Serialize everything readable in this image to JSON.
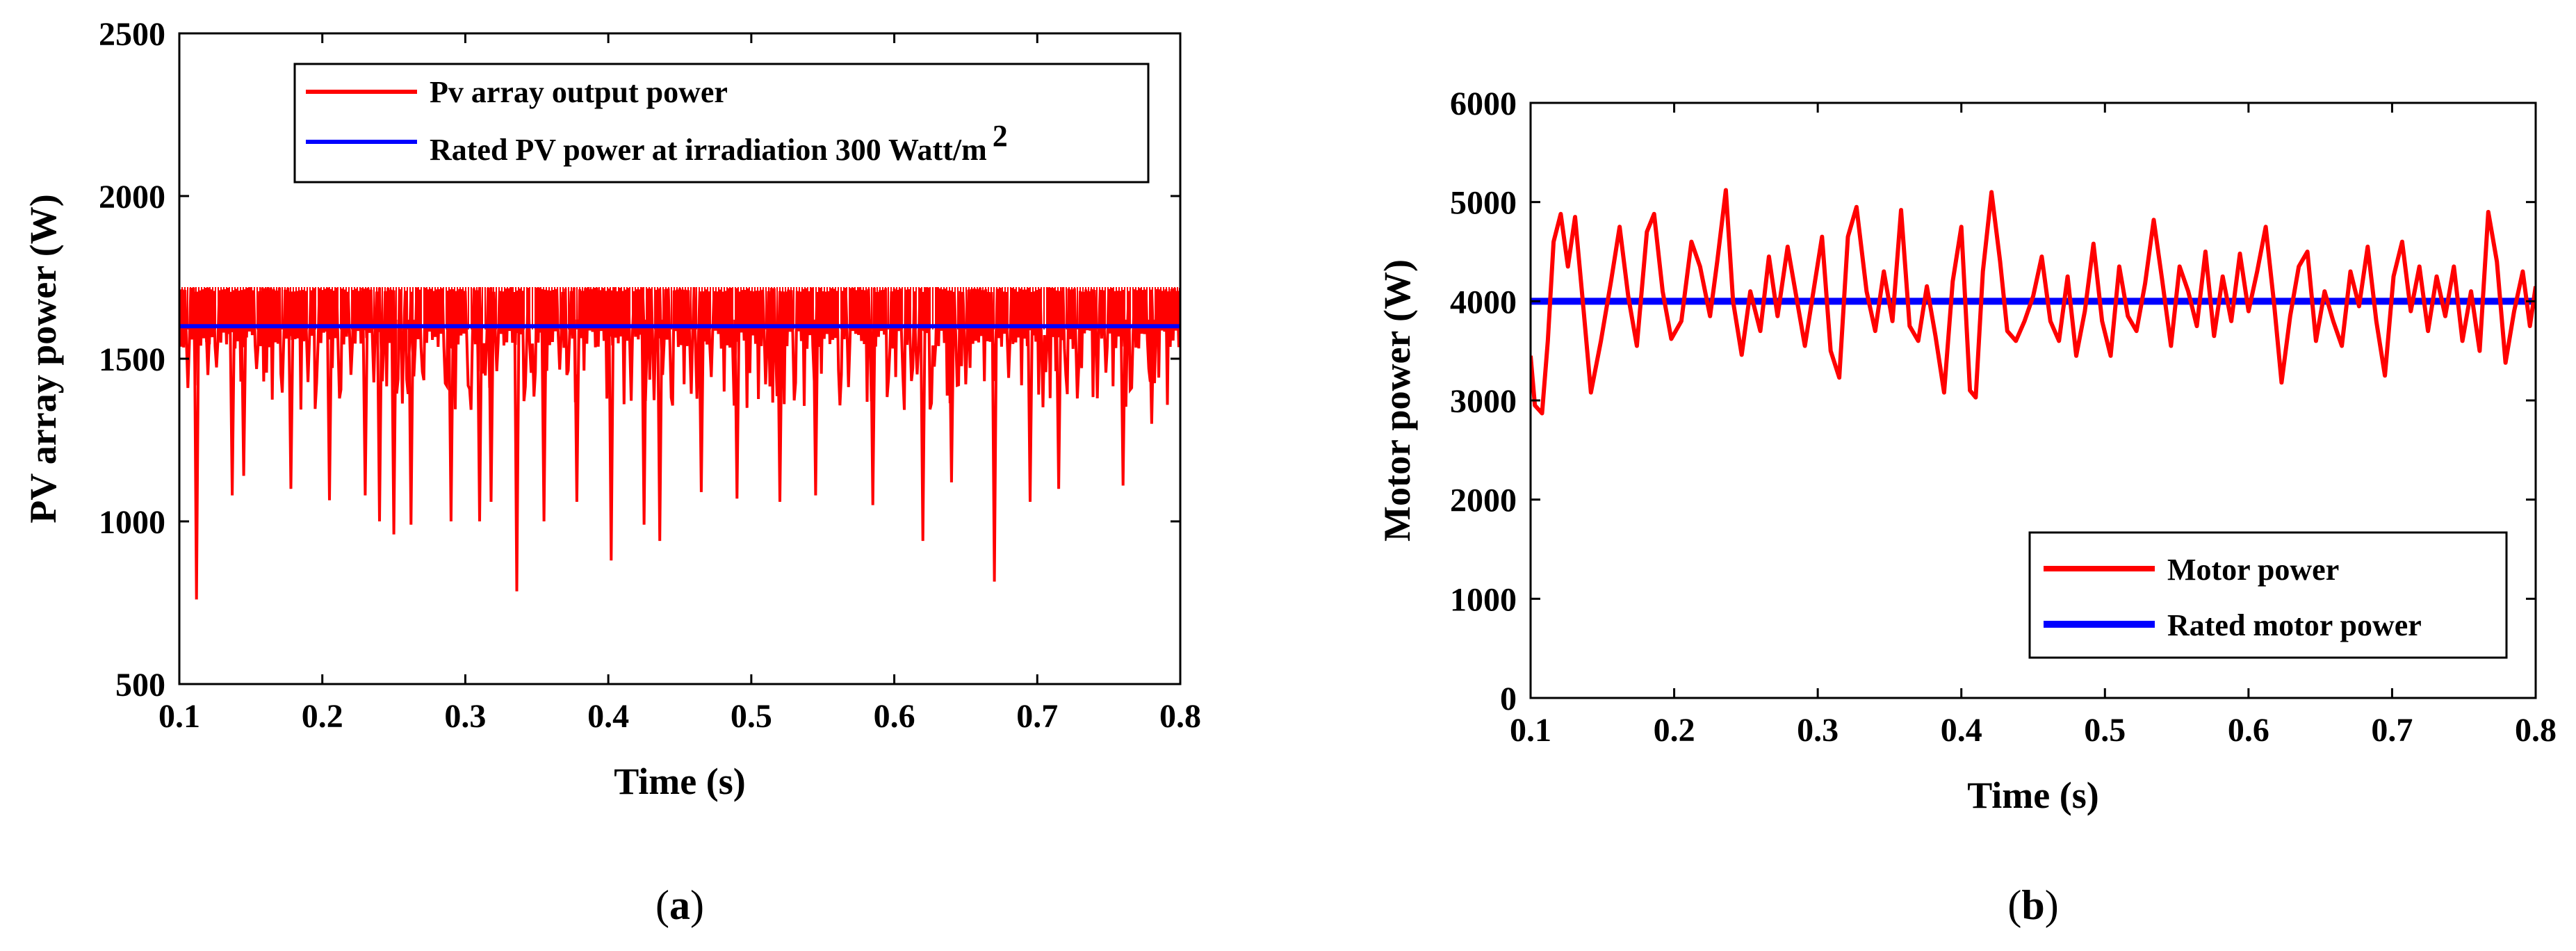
{
  "chart_data": [
    {
      "type": "line",
      "panel": "(a)",
      "caption_letter": "a",
      "xlabel": "Time (s)",
      "ylabel": "PV array power (W)",
      "xlim": [
        0.1,
        0.8
      ],
      "ylim": [
        500,
        2500
      ],
      "xticks": [
        0.1,
        0.2,
        0.3,
        0.4,
        0.5,
        0.6,
        0.7,
        0.8
      ],
      "yticks": [
        500,
        1000,
        1500,
        2000,
        2500
      ],
      "xtick_labels": [
        "0.1",
        "0.2",
        "0.3",
        "0.4",
        "0.5",
        "0.6",
        "0.7",
        "0.8"
      ],
      "ytick_labels": [
        "500",
        "1000",
        "1500",
        "2000",
        "2500"
      ],
      "legend_position": "top-right",
      "series": [
        {
          "name": "Pv array output power",
          "color": "#ff0000",
          "kind": "noisy",
          "base_range": [
            1560,
            1720
          ],
          "dips": [
            [
              0.112,
              760
            ],
            [
              0.12,
              1450
            ],
            [
              0.137,
              1080
            ],
            [
              0.145,
              1140
            ],
            [
              0.178,
              1100
            ],
            [
              0.205,
              1065
            ],
            [
              0.23,
              1080
            ],
            [
              0.24,
              1000
            ],
            [
              0.25,
              960
            ],
            [
              0.262,
              990
            ],
            [
              0.29,
              1000
            ],
            [
              0.31,
              1000
            ],
            [
              0.318,
              1060
            ],
            [
              0.336,
              785
            ],
            [
              0.355,
              1000
            ],
            [
              0.378,
              1060
            ],
            [
              0.402,
              880
            ],
            [
              0.425,
              990
            ],
            [
              0.436,
              940
            ],
            [
              0.465,
              1090
            ],
            [
              0.49,
              1070
            ],
            [
              0.52,
              1060
            ],
            [
              0.545,
              1080
            ],
            [
              0.585,
              1050
            ],
            [
              0.62,
              940
            ],
            [
              0.64,
              1120
            ],
            [
              0.67,
              815
            ],
            [
              0.695,
              1060
            ],
            [
              0.715,
              1100
            ],
            [
              0.76,
              1110
            ],
            [
              0.78,
              1300
            ]
          ]
        },
        {
          "name": "Rated PV power at irradiation 300 Watt/m",
          "superscript": "2",
          "color": "#0000ff",
          "kind": "constant",
          "value": 1600
        }
      ]
    },
    {
      "type": "line",
      "panel": "(b)",
      "caption_letter": "b",
      "xlabel": "Time (s)",
      "ylabel": "Motor power (W)",
      "xlim": [
        0.1,
        0.8
      ],
      "ylim": [
        0,
        6000
      ],
      "xticks": [
        0.1,
        0.2,
        0.3,
        0.4,
        0.5,
        0.6,
        0.7,
        0.8
      ],
      "yticks": [
        0,
        1000,
        2000,
        3000,
        4000,
        5000,
        6000
      ],
      "xtick_labels": [
        "0.1",
        "0.2",
        "0.3",
        "0.4",
        "0.5",
        "0.6",
        "0.7",
        "0.8"
      ],
      "ytick_labels": [
        "0",
        "1000",
        "2000",
        "3000",
        "4000",
        "5000",
        "6000"
      ],
      "legend_position": "bottom-right",
      "series": [
        {
          "name": "Motor power",
          "color": "#ff0000",
          "kind": "curve",
          "points": [
            [
              0.1,
              3450
            ],
            [
              0.103,
              2950
            ],
            [
              0.108,
              2870
            ],
            [
              0.112,
              3600
            ],
            [
              0.116,
              4600
            ],
            [
              0.121,
              4880
            ],
            [
              0.126,
              4350
            ],
            [
              0.131,
              4850
            ],
            [
              0.137,
              3900
            ],
            [
              0.142,
              3080
            ],
            [
              0.149,
              3600
            ],
            [
              0.156,
              4200
            ],
            [
              0.162,
              4750
            ],
            [
              0.168,
              4050
            ],
            [
              0.174,
              3550
            ],
            [
              0.181,
              4700
            ],
            [
              0.186,
              4880
            ],
            [
              0.192,
              4100
            ],
            [
              0.198,
              3620
            ],
            [
              0.205,
              3800
            ],
            [
              0.212,
              4600
            ],
            [
              0.218,
              4350
            ],
            [
              0.225,
              3850
            ],
            [
              0.23,
              4400
            ],
            [
              0.236,
              5120
            ],
            [
              0.241,
              4000
            ],
            [
              0.247,
              3460
            ],
            [
              0.253,
              4100
            ],
            [
              0.26,
              3700
            ],
            [
              0.266,
              4450
            ],
            [
              0.272,
              3850
            ],
            [
              0.279,
              4550
            ],
            [
              0.285,
              4050
            ],
            [
              0.291,
              3550
            ],
            [
              0.297,
              4100
            ],
            [
              0.303,
              4650
            ],
            [
              0.309,
              3500
            ],
            [
              0.315,
              3230
            ],
            [
              0.321,
              4650
            ],
            [
              0.327,
              4950
            ],
            [
              0.334,
              4100
            ],
            [
              0.34,
              3700
            ],
            [
              0.346,
              4300
            ],
            [
              0.352,
              3800
            ],
            [
              0.358,
              4920
            ],
            [
              0.364,
              3750
            ],
            [
              0.37,
              3600
            ],
            [
              0.376,
              4150
            ],
            [
              0.382,
              3650
            ],
            [
              0.388,
              3080
            ],
            [
              0.394,
              4200
            ],
            [
              0.4,
              4750
            ],
            [
              0.406,
              3100
            ],
            [
              0.41,
              3030
            ],
            [
              0.415,
              4300
            ],
            [
              0.421,
              5100
            ],
            [
              0.427,
              4400
            ],
            [
              0.432,
              3700
            ],
            [
              0.438,
              3600
            ],
            [
              0.444,
              3800
            ],
            [
              0.45,
              4050
            ],
            [
              0.456,
              4450
            ],
            [
              0.462,
              3800
            ],
            [
              0.468,
              3600
            ],
            [
              0.474,
              4250
            ],
            [
              0.48,
              3450
            ],
            [
              0.486,
              3900
            ],
            [
              0.492,
              4580
            ],
            [
              0.498,
              3800
            ],
            [
              0.504,
              3450
            ],
            [
              0.51,
              4350
            ],
            [
              0.516,
              3850
            ],
            [
              0.522,
              3700
            ],
            [
              0.528,
              4180
            ],
            [
              0.534,
              4820
            ],
            [
              0.54,
              4200
            ],
            [
              0.546,
              3550
            ],
            [
              0.552,
              4350
            ],
            [
              0.558,
              4100
            ],
            [
              0.564,
              3750
            ],
            [
              0.57,
              4500
            ],
            [
              0.576,
              3650
            ],
            [
              0.582,
              4250
            ],
            [
              0.588,
              3800
            ],
            [
              0.594,
              4480
            ],
            [
              0.6,
              3900
            ],
            [
              0.606,
              4300
            ],
            [
              0.612,
              4750
            ],
            [
              0.618,
              3950
            ],
            [
              0.623,
              3180
            ],
            [
              0.629,
              3850
            ],
            [
              0.635,
              4350
            ],
            [
              0.641,
              4500
            ],
            [
              0.647,
              3600
            ],
            [
              0.653,
              4100
            ],
            [
              0.659,
              3800
            ],
            [
              0.665,
              3550
            ],
            [
              0.671,
              4300
            ],
            [
              0.677,
              3950
            ],
            [
              0.683,
              4550
            ],
            [
              0.689,
              3800
            ],
            [
              0.695,
              3250
            ],
            [
              0.701,
              4250
            ],
            [
              0.707,
              4600
            ],
            [
              0.713,
              3900
            ],
            [
              0.719,
              4350
            ],
            [
              0.725,
              3700
            ],
            [
              0.731,
              4250
            ],
            [
              0.737,
              3850
            ],
            [
              0.743,
              4350
            ],
            [
              0.749,
              3600
            ],
            [
              0.755,
              4100
            ],
            [
              0.761,
              3500
            ],
            [
              0.767,
              4900
            ],
            [
              0.773,
              4400
            ],
            [
              0.779,
              3380
            ],
            [
              0.785,
              3900
            ],
            [
              0.791,
              4300
            ],
            [
              0.796,
              3750
            ],
            [
              0.8,
              4150
            ]
          ]
        },
        {
          "name": "Rated motor power",
          "color": "#0000ff",
          "kind": "constant",
          "value": 4000
        }
      ]
    }
  ]
}
